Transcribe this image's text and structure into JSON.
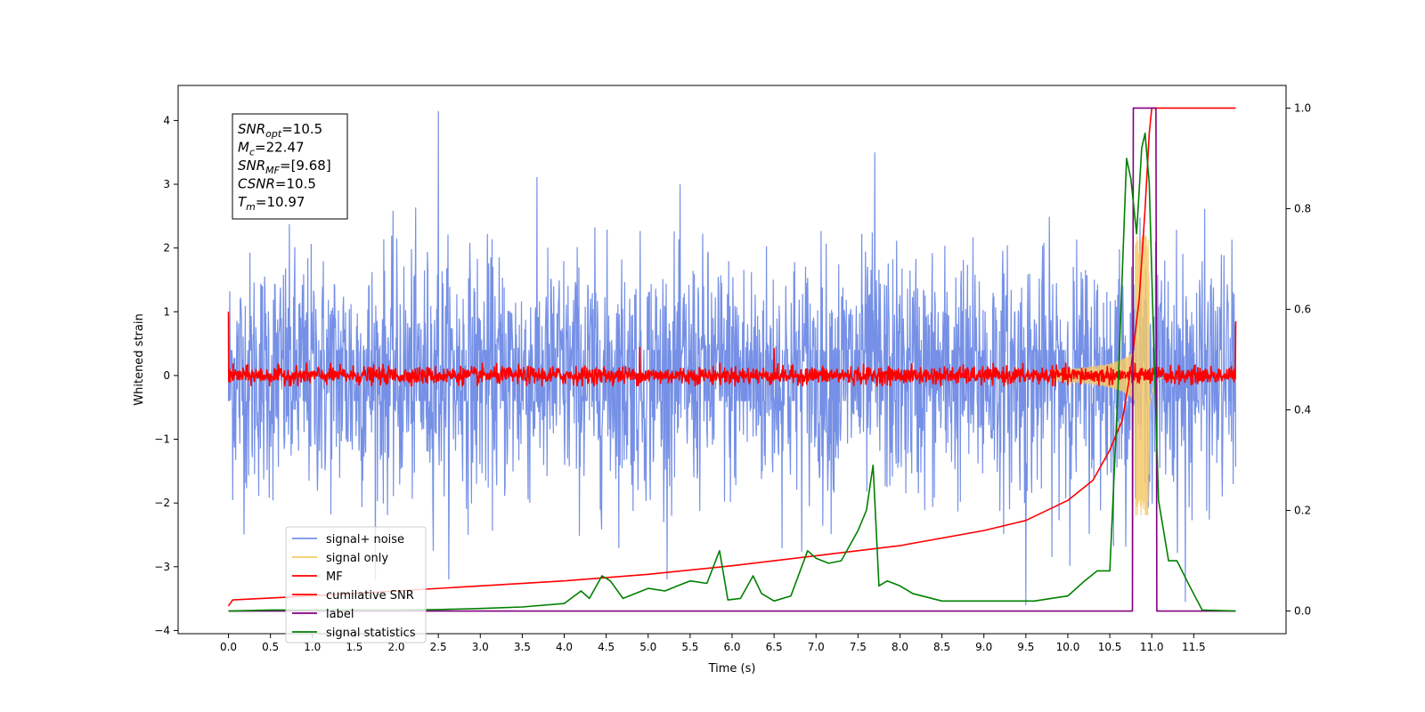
{
  "chart_data": {
    "type": "line",
    "xlabel": "Time (s)",
    "ylabel_left": "Whitened strain",
    "ylabel_right": "",
    "xlim": [
      -0.6,
      12.6
    ],
    "ylim_left": [
      -4.05,
      4.55
    ],
    "ylim_right": [
      -0.045,
      1.045
    ],
    "x_ticks": [
      "0.0",
      "0.5",
      "1.0",
      "1.5",
      "2.0",
      "2.5",
      "3.0",
      "3.5",
      "4.0",
      "4.5",
      "5.0",
      "5.5",
      "6.0",
      "6.5",
      "7.0",
      "7.5",
      "8.0",
      "8.5",
      "9.0",
      "9.5",
      "10.0",
      "10.5",
      "11.0",
      "11.5"
    ],
    "y_ticks_left": [
      "4",
      "3",
      "2",
      "1",
      "0",
      "−1",
      "−2",
      "−3",
      "−4"
    ],
    "y_ticks_right": [
      "1.0",
      "0.8",
      "0.6",
      "0.4",
      "0.2",
      "0.0"
    ],
    "grid": false,
    "legend_position": "lower-left",
    "series": [
      {
        "name": "signal+ noise",
        "axis": "left",
        "color": "#7590e6",
        "style": "noise band",
        "x_range": [
          0.0,
          12.0
        ],
        "amplitude_envelope": 2.2,
        "peak_spikes": [
          [
            2.5,
            4.15
          ],
          [
            7.7,
            3.5
          ],
          [
            11.4,
            -3.55
          ],
          [
            9.5,
            -3.6
          ]
        ]
      },
      {
        "name": "signal only",
        "axis": "left",
        "color": "#f5c96a",
        "style": "chirp",
        "merger_time": 10.97,
        "peak_amplitude": 2.2
      },
      {
        "name": "MF",
        "axis": "left",
        "color": "#ff0000",
        "style": "noise band",
        "x_range": [
          0.0,
          12.0
        ],
        "amplitude_envelope": 0.12,
        "peak_spikes": [
          [
            0.0,
            1.0
          ],
          [
            4.9,
            0.45
          ],
          [
            6.5,
            0.43
          ],
          [
            12.0,
            0.85
          ]
        ]
      },
      {
        "name": "cumilative SNR",
        "axis": "right",
        "color": "#ff0000",
        "x": [
          0.0,
          0.05,
          1.0,
          2.0,
          3.0,
          4.0,
          5.0,
          6.0,
          7.0,
          8.0,
          9.0,
          9.5,
          10.0,
          10.3,
          10.5,
          10.65,
          10.75,
          10.85,
          10.92,
          10.97,
          11.0,
          12.0
        ],
        "values": [
          0.01,
          0.022,
          0.03,
          0.04,
          0.05,
          0.06,
          0.073,
          0.09,
          0.11,
          0.13,
          0.16,
          0.18,
          0.22,
          0.26,
          0.32,
          0.38,
          0.48,
          0.62,
          0.8,
          0.95,
          1.0,
          1.0
        ]
      },
      {
        "name": "label",
        "axis": "right",
        "color": "#800080",
        "x": [
          0.0,
          10.77,
          10.78,
          11.05,
          11.06,
          12.0
        ],
        "values": [
          0.0,
          0.0,
          1.0,
          1.0,
          0.0,
          0.0
        ]
      },
      {
        "name": "signal statistics",
        "axis": "right",
        "color": "#008000",
        "x": [
          0.0,
          0.5,
          1.0,
          1.5,
          2.0,
          2.5,
          3.0,
          3.5,
          4.0,
          4.2,
          4.3,
          4.45,
          4.55,
          4.7,
          5.0,
          5.2,
          5.35,
          5.5,
          5.7,
          5.85,
          5.95,
          6.1,
          6.25,
          6.35,
          6.5,
          6.7,
          6.9,
          7.0,
          7.15,
          7.3,
          7.5,
          7.6,
          7.68,
          7.75,
          7.85,
          8.0,
          8.15,
          8.5,
          9.0,
          9.3,
          9.6,
          10.0,
          10.2,
          10.35,
          10.5,
          10.6,
          10.7,
          10.75,
          10.82,
          10.88,
          10.92,
          10.97,
          11.02,
          11.08,
          11.2,
          11.3,
          11.45,
          11.6,
          12.0
        ],
        "values": [
          0.0,
          0.002,
          0.002,
          0.002,
          0.002,
          0.003,
          0.005,
          0.008,
          0.015,
          0.04,
          0.025,
          0.07,
          0.06,
          0.025,
          0.045,
          0.04,
          0.05,
          0.06,
          0.055,
          0.12,
          0.022,
          0.025,
          0.07,
          0.035,
          0.02,
          0.03,
          0.12,
          0.105,
          0.095,
          0.1,
          0.16,
          0.2,
          0.29,
          0.05,
          0.06,
          0.05,
          0.035,
          0.02,
          0.02,
          0.02,
          0.02,
          0.03,
          0.06,
          0.08,
          0.08,
          0.45,
          0.9,
          0.86,
          0.75,
          0.92,
          0.95,
          0.85,
          0.55,
          0.22,
          0.1,
          0.1,
          0.05,
          0.002,
          0.0
        ]
      }
    ]
  },
  "info_box": {
    "lines": [
      {
        "main": "SNR",
        "sub": "opt",
        "rest": "=10.5"
      },
      {
        "main": "M",
        "sub": "c",
        "rest": "=22.47"
      },
      {
        "main": "SNR",
        "sub": "MF",
        "rest": "=[9.68]"
      },
      {
        "main": "CSNR",
        "sub": "",
        "rest": "=10.5"
      },
      {
        "main": "T",
        "sub": "m",
        "rest": "=10.97"
      }
    ]
  }
}
